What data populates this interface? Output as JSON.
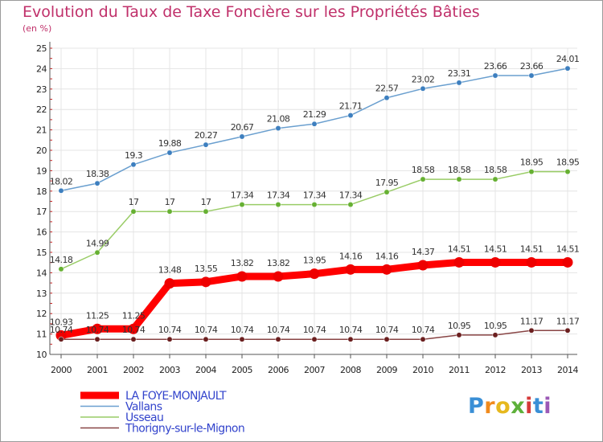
{
  "page": {
    "title": "Evolution du Taux de Taxe Foncière sur les Propriétés Bâties",
    "unit_label": "(en %)",
    "logo": [
      "P",
      "r",
      "o",
      "x",
      "i",
      "t",
      "i"
    ]
  },
  "chart_data": {
    "type": "line",
    "title": "Evolution du Taux de Taxe Foncière sur les Propriétés Bâties",
    "ylabel": "(en %)",
    "xlabel": "",
    "ylim": [
      10,
      25
    ],
    "y_ticks": [
      10,
      11,
      12,
      13,
      14,
      15,
      16,
      17,
      18,
      19,
      20,
      21,
      22,
      23,
      24,
      25
    ],
    "categories": [
      "2000",
      "2001",
      "2002",
      "2003",
      "2004",
      "2005",
      "2006",
      "2007",
      "2008",
      "2009",
      "2010",
      "2011",
      "2012",
      "2013",
      "2014"
    ],
    "grid": true,
    "legend_position": "bottom-left",
    "series": [
      {
        "name": "Vallans",
        "color": "#6a9fcf",
        "marker": "#3d7fbf",
        "values": [
          18.02,
          18.38,
          19.3,
          19.88,
          20.27,
          20.67,
          21.08,
          21.29,
          21.71,
          22.57,
          23.02,
          23.31,
          23.66,
          23.66,
          24.01
        ],
        "labels": [
          "18.02",
          "18.38",
          "19.3",
          "19.88",
          "20.27",
          "20.67",
          "21.08",
          "21.29",
          "21.71",
          "22.57",
          "23.02",
          "23.31",
          "23.66",
          "23.66",
          "24.01"
        ]
      },
      {
        "name": "Usseau",
        "color": "#99cc66",
        "marker": "#66b032",
        "values": [
          14.18,
          14.99,
          17,
          17,
          17,
          17.34,
          17.34,
          17.34,
          17.34,
          17.95,
          18.58,
          18.58,
          18.58,
          18.95,
          18.95
        ],
        "labels": [
          "14.18",
          "14.99",
          "17",
          "17",
          "17",
          "17.34",
          "17.34",
          "17.34",
          "17.34",
          "17.95",
          "18.58",
          "18.58",
          "18.58",
          "18.95",
          "18.95"
        ]
      },
      {
        "name": "LA FOYE-MONJAULT",
        "color": "#ff0000",
        "marker": "#ee0000",
        "values": [
          10.93,
          11.25,
          11.25,
          13.48,
          13.55,
          13.82,
          13.82,
          13.95,
          14.16,
          14.16,
          14.37,
          14.51,
          14.51,
          14.51,
          14.51
        ],
        "labels": [
          "10.93",
          "11.25",
          "11.25",
          "13.48",
          "13.55",
          "13.82",
          "13.82",
          "13.95",
          "14.16",
          "14.16",
          "14.37",
          "14.51",
          "14.51",
          "14.51",
          "14.51"
        ]
      },
      {
        "name": "Thorigny-sur-le-Mignon",
        "color": "#884444",
        "marker": "#6b1f1f",
        "values": [
          10.74,
          10.74,
          10.74,
          10.74,
          10.74,
          10.74,
          10.74,
          10.74,
          10.74,
          10.74,
          10.74,
          10.95,
          10.95,
          11.17,
          11.17
        ],
        "labels": [
          "10.74",
          "10.74",
          "10.74",
          "10.74",
          "10.74",
          "10.74",
          "10.74",
          "10.74",
          "10.74",
          "10.74",
          "10.74",
          "10.95",
          "10.95",
          "11.17",
          "11.17"
        ]
      }
    ],
    "legend": [
      "LA FOYE-MONJAULT",
      "Vallans",
      "Usseau",
      "Thorigny-sur-le-Mignon"
    ]
  }
}
